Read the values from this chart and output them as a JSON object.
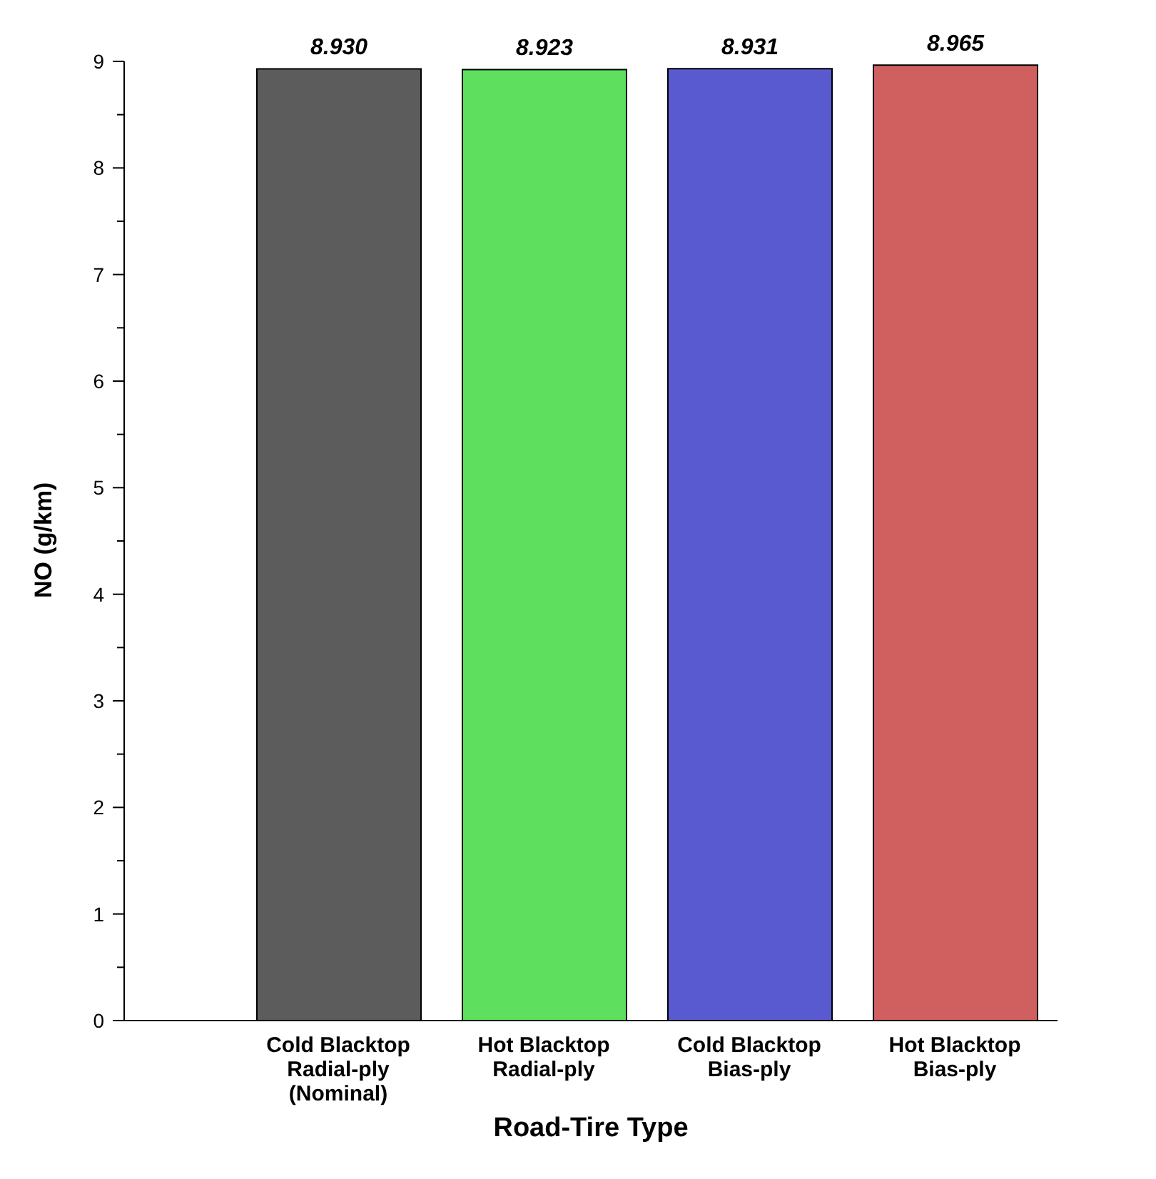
{
  "chart_data": {
    "type": "bar",
    "xlabel": "Road-Tire Type",
    "ylabel": "NO (g/km)",
    "categories": [
      "Cold Blacktop\nRadial-ply\n(Nominal)",
      "Hot Blacktop\nRadial-ply",
      "Cold Blacktop\nBias-ply",
      "Hot Blacktop\nBias-ply"
    ],
    "values": [
      8.93,
      8.923,
      8.931,
      8.965
    ],
    "value_labels": [
      "8.930",
      "8.923",
      "8.931",
      "8.965"
    ],
    "colors": [
      "#5c5c5c",
      "#5ee05e",
      "#5a5ad0",
      "#d06060"
    ],
    "ylim": [
      0,
      9
    ],
    "yticks": [
      0,
      {
        "value": 0.5,
        "label": null
      },
      1,
      {
        "value": 1.5,
        "label": null
      },
      2,
      {
        "value": 2.5,
        "label": null
      },
      3,
      {
        "value": 3.5,
        "label": null
      },
      4,
      {
        "value": 4.5,
        "label": null
      },
      5,
      {
        "value": 5.5,
        "label": null
      },
      6,
      {
        "value": 6.5,
        "label": null
      },
      7,
      {
        "value": 7.5,
        "label": null
      },
      8,
      {
        "value": 8.5,
        "label": null
      },
      9
    ],
    "grid": false,
    "legend": false
  }
}
